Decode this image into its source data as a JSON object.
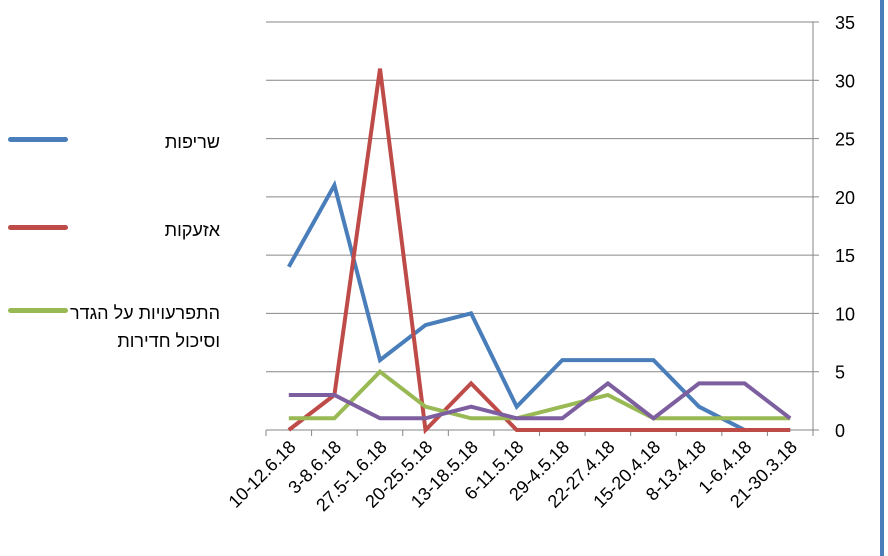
{
  "chart_data": {
    "type": "line",
    "categories": [
      "10-12.6.18",
      "3-8.6.18",
      "27.5-1.6.18",
      "20-25.5.18",
      "13-18.5.18",
      "6-11.5.18",
      "29-4.5.18",
      "22-27.4.18",
      "15-20.4.18",
      "8-13.4.18",
      "1-6.4.18",
      "21-30.3.18"
    ],
    "series": [
      {
        "name": "שריפות",
        "color": "#4a7ebb",
        "values": [
          14,
          21,
          6,
          9,
          10,
          2,
          6,
          6,
          6,
          2,
          0,
          0
        ]
      },
      {
        "name": "אזעקות",
        "color": "#be4b48",
        "values": [
          0,
          3,
          31,
          0,
          4,
          0,
          0,
          0,
          0,
          0,
          0,
          0
        ]
      },
      {
        "name": "התפרעויות על הגדר וסיכול חדירות",
        "color": "#98b954",
        "values": [
          1,
          1,
          5,
          2,
          1,
          1,
          2,
          3,
          1,
          1,
          1,
          1
        ]
      },
      {
        "color": "#7d5fa0",
        "values": [
          3,
          3,
          1,
          1,
          2,
          1,
          1,
          4,
          1,
          4,
          4,
          1
        ]
      }
    ],
    "ylim": [
      0,
      35
    ],
    "yticks": [
      0,
      5,
      10,
      15,
      20,
      25,
      30,
      35
    ],
    "y_axis_side": "right",
    "grid": true,
    "legend_position": "left"
  }
}
